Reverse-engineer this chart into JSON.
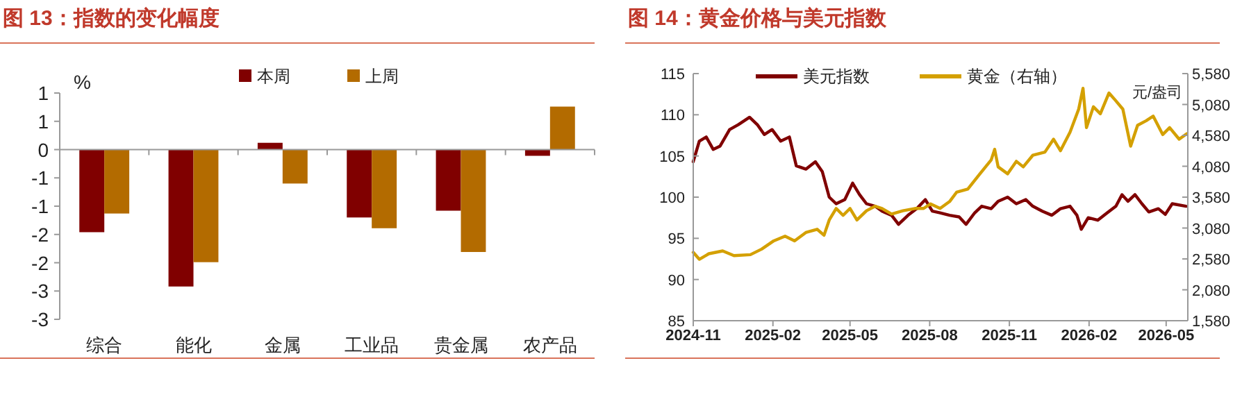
{
  "chart_data": [
    {
      "type": "bar",
      "title": "图 13：指数的变化幅度",
      "ylabel": "%",
      "legend": "top",
      "categories": [
        "综合",
        "能化",
        "金属",
        "工业品",
        "贵金属",
        "农产品"
      ],
      "series": [
        {
          "name": "本周",
          "color": "#800000",
          "values": [
            -1.46,
            -2.42,
            0.12,
            -1.2,
            -1.08,
            -0.11
          ]
        },
        {
          "name": "上周",
          "color": "#b36b00",
          "values": [
            -1.13,
            -1.99,
            -0.6,
            -1.39,
            -1.81,
            0.76
          ]
        }
      ],
      "ylim": [
        -3,
        1
      ],
      "yticks": [
        {
          "value": 1,
          "label": "1"
        },
        {
          "value": 0.5,
          "label": "1"
        },
        0,
        {
          "value": -0.5,
          "label": "-1"
        },
        -1,
        {
          "value": -1.5,
          "label": "-2"
        },
        -2,
        {
          "value": -2.5,
          "label": "-3"
        },
        -3
      ]
    },
    {
      "type": "line",
      "title": "图 14：黄金价格与美元指数",
      "y2label": "元/盎司",
      "legend": "top",
      "xlim": [
        "2024-11-01",
        "2026-05-26"
      ],
      "xticks": [
        "2024-11",
        "2025-02",
        "2025-05",
        "2025-08",
        "2025-11",
        "2026-02",
        "2026-05"
      ],
      "ylim": [
        85,
        115
      ],
      "yticks": [
        85,
        90,
        95,
        100,
        105,
        110,
        115
      ],
      "y2lim": [
        1580,
        5580
      ],
      "y2ticks": [
        {
          "value": 1580,
          "label": "1,580"
        },
        {
          "value": 2080,
          "label": "2,080"
        },
        {
          "value": 2580,
          "label": "2,580"
        },
        {
          "value": 3080,
          "label": "3,080"
        },
        {
          "value": 3580,
          "label": "3,580"
        },
        {
          "value": 4080,
          "label": "4,080"
        },
        {
          "value": 4580,
          "label": "4,580"
        },
        {
          "value": 5080,
          "label": "5,080"
        },
        {
          "value": 5580,
          "label": "5,580"
        }
      ],
      "series": [
        {
          "name": "美元指数",
          "color": "#800000",
          "x": [
            "2024-11-01",
            "2024-11-08",
            "2024-11-16",
            "2024-11-24",
            "2024-12-02",
            "2024-12-13",
            "2024-12-23",
            "2025-01-05",
            "2025-01-14",
            "2025-01-22",
            "2025-01-31",
            "2025-02-10",
            "2025-02-20",
            "2025-02-28",
            "2025-03-11",
            "2025-03-22",
            "2025-03-30",
            "2025-04-07",
            "2025-04-15",
            "2025-04-25",
            "2025-05-04",
            "2025-05-12",
            "2025-05-20",
            "2025-05-30",
            "2025-06-07",
            "2025-06-18",
            "2025-06-26",
            "2025-07-07",
            "2025-07-17",
            "2025-07-27",
            "2025-08-04",
            "2025-08-13",
            "2025-08-24",
            "2025-09-04",
            "2025-09-12",
            "2025-09-22",
            "2025-09-30",
            "2025-10-11",
            "2025-10-19",
            "2025-10-30",
            "2025-11-09",
            "2025-11-20",
            "2025-11-28",
            "2025-12-09",
            "2025-12-20",
            "2025-12-30",
            "2026-01-10",
            "2026-01-18",
            "2026-01-23",
            "2026-01-31",
            "2026-02-11",
            "2026-02-22",
            "2026-03-04",
            "2026-03-11",
            "2026-03-18",
            "2026-03-26",
            "2026-04-03",
            "2026-04-11",
            "2026-04-22",
            "2026-04-30",
            "2026-05-08",
            "2026-05-24"
          ],
          "values": [
            104.3,
            106.8,
            107.3,
            105.8,
            106.2,
            108.2,
            108.8,
            109.7,
            108.8,
            107.6,
            108.2,
            106.8,
            107.3,
            103.8,
            103.4,
            104.3,
            103.1,
            100,
            99.2,
            99.7,
            101.7,
            100.3,
            99.2,
            98.9,
            98.3,
            97.8,
            96.7,
            97.8,
            98.6,
            99.7,
            98.3,
            98.1,
            97.8,
            97.6,
            96.7,
            98.1,
            98.9,
            98.6,
            99.5,
            100,
            99.2,
            99.7,
            98.9,
            98.3,
            97.8,
            98.6,
            98.9,
            97.8,
            96.1,
            97.5,
            97.2,
            98.1,
            98.9,
            100.3,
            99.5,
            100.3,
            99.2,
            98.2,
            98.6,
            97.9,
            99.2,
            98.9
          ]
        },
        {
          "name": "黄金（右轴）",
          "color": "#d4a000",
          "axis": "y2",
          "x": [
            "2024-11-01",
            "2024-11-08",
            "2024-11-19",
            "2024-12-05",
            "2024-12-18",
            "2025-01-06",
            "2025-01-19",
            "2025-02-02",
            "2025-02-15",
            "2025-02-26",
            "2025-03-11",
            "2025-03-24",
            "2025-04-01",
            "2025-04-07",
            "2025-04-15",
            "2025-04-23",
            "2025-05-01",
            "2025-05-09",
            "2025-05-20",
            "2025-05-30",
            "2025-06-07",
            "2025-06-18",
            "2025-07-01",
            "2025-07-15",
            "2025-07-25",
            "2025-08-02",
            "2025-08-13",
            "2025-08-24",
            "2025-09-01",
            "2025-09-14",
            "2025-09-28",
            "2025-10-11",
            "2025-10-15",
            "2025-10-19",
            "2025-10-30",
            "2025-11-09",
            "2025-11-17",
            "2025-11-28",
            "2025-12-12",
            "2025-12-22",
            "2025-12-30",
            "2026-01-10",
            "2026-01-20",
            "2026-01-25",
            "2026-01-29",
            "2026-02-06",
            "2026-02-14",
            "2026-02-24",
            "2026-03-03",
            "2026-03-12",
            "2026-03-21",
            "2026-03-29",
            "2026-04-08",
            "2026-04-16",
            "2026-04-27",
            "2026-05-05",
            "2026-05-16",
            "2026-05-25"
          ],
          "values": [
            2686,
            2574,
            2664,
            2709,
            2634,
            2649,
            2739,
            2873,
            2948,
            2873,
            3008,
            3060,
            2963,
            3210,
            3397,
            3285,
            3397,
            3210,
            3360,
            3434,
            3397,
            3307,
            3360,
            3397,
            3397,
            3471,
            3397,
            3509,
            3659,
            3711,
            3958,
            4182,
            4354,
            4070,
            3958,
            4160,
            4070,
            4257,
            4309,
            4518,
            4332,
            4630,
            5004,
            5341,
            4705,
            5042,
            4930,
            5266,
            5154,
            5004,
            4406,
            4743,
            4817,
            4892,
            4593,
            4705,
            4518,
            4608
          ]
        }
      ]
    }
  ]
}
